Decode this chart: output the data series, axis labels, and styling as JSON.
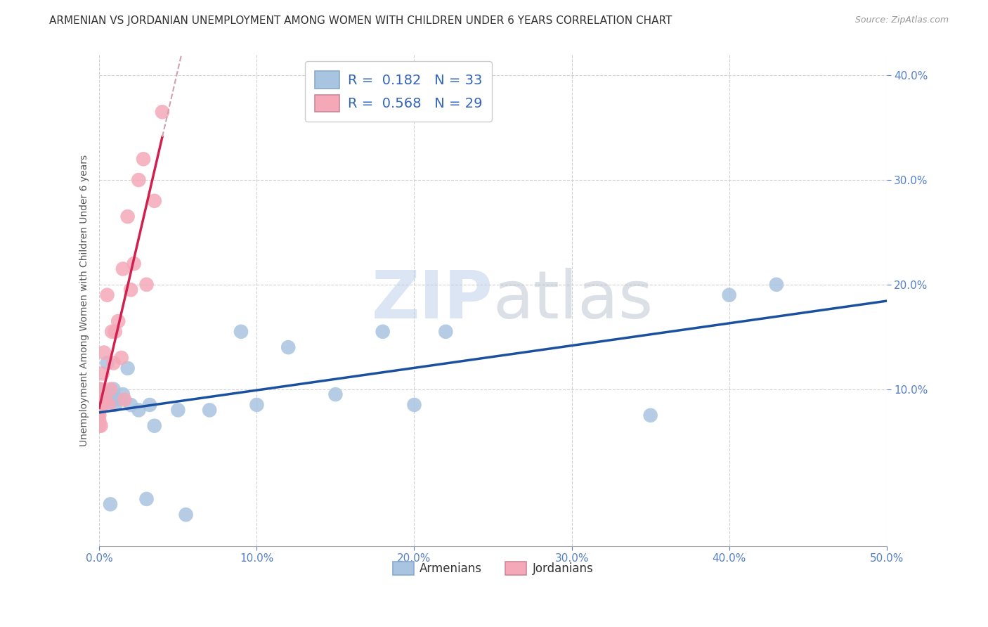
{
  "title": "ARMENIAN VS JORDANIAN UNEMPLOYMENT AMONG WOMEN WITH CHILDREN UNDER 6 YEARS CORRELATION CHART",
  "source": "Source: ZipAtlas.com",
  "ylabel": "Unemployment Among Women with Children Under 6 years",
  "xlim": [
    0.0,
    0.5
  ],
  "ylim": [
    -0.05,
    0.42
  ],
  "xticks": [
    0.0,
    0.1,
    0.2,
    0.3,
    0.4,
    0.5
  ],
  "yticks": [
    0.1,
    0.2,
    0.3,
    0.4
  ],
  "armenian_color": "#a8c4e0",
  "jordanian_color": "#f4a8b8",
  "armenian_line_color": "#1a50a0",
  "jordanian_line_color": "#d02050",
  "jordanian_dash_color": "#d0a0b0",
  "R_armenian": 0.182,
  "N_armenian": 33,
  "R_jordanian": 0.568,
  "N_jordanian": 29,
  "watermark_zip": "ZIP",
  "watermark_atlas": "atlas",
  "armenian_x": [
    0.0,
    0.0,
    0.0,
    0.002,
    0.003,
    0.004,
    0.005,
    0.006,
    0.007,
    0.008,
    0.009,
    0.01,
    0.012,
    0.015,
    0.018,
    0.02,
    0.025,
    0.03,
    0.032,
    0.035,
    0.05,
    0.055,
    0.07,
    0.09,
    0.1,
    0.12,
    0.15,
    0.18,
    0.2,
    0.22,
    0.35,
    0.4,
    0.43
  ],
  "armenian_y": [
    0.09,
    0.095,
    0.1,
    0.085,
    0.09,
    0.095,
    0.125,
    0.095,
    -0.01,
    0.09,
    0.1,
    0.085,
    0.09,
    0.095,
    0.12,
    0.085,
    0.08,
    -0.005,
    0.085,
    0.065,
    0.08,
    -0.02,
    0.08,
    0.155,
    0.085,
    0.14,
    0.095,
    0.155,
    0.085,
    0.155,
    0.075,
    0.19,
    0.2
  ],
  "jordanian_x": [
    0.0,
    0.0,
    0.0,
    0.0,
    0.0,
    0.0,
    0.001,
    0.001,
    0.002,
    0.003,
    0.004,
    0.005,
    0.006,
    0.007,
    0.008,
    0.009,
    0.01,
    0.012,
    0.014,
    0.015,
    0.016,
    0.018,
    0.02,
    0.022,
    0.025,
    0.028,
    0.03,
    0.035,
    0.04
  ],
  "jordanian_y": [
    0.065,
    0.07,
    0.075,
    0.08,
    0.085,
    0.09,
    0.065,
    0.1,
    0.115,
    0.135,
    0.09,
    0.19,
    0.085,
    0.1,
    0.155,
    0.125,
    0.155,
    0.165,
    0.13,
    0.215,
    0.09,
    0.265,
    0.195,
    0.22,
    0.3,
    0.32,
    0.2,
    0.28,
    0.365
  ],
  "background_color": "#ffffff",
  "grid_color": "#cccccc"
}
